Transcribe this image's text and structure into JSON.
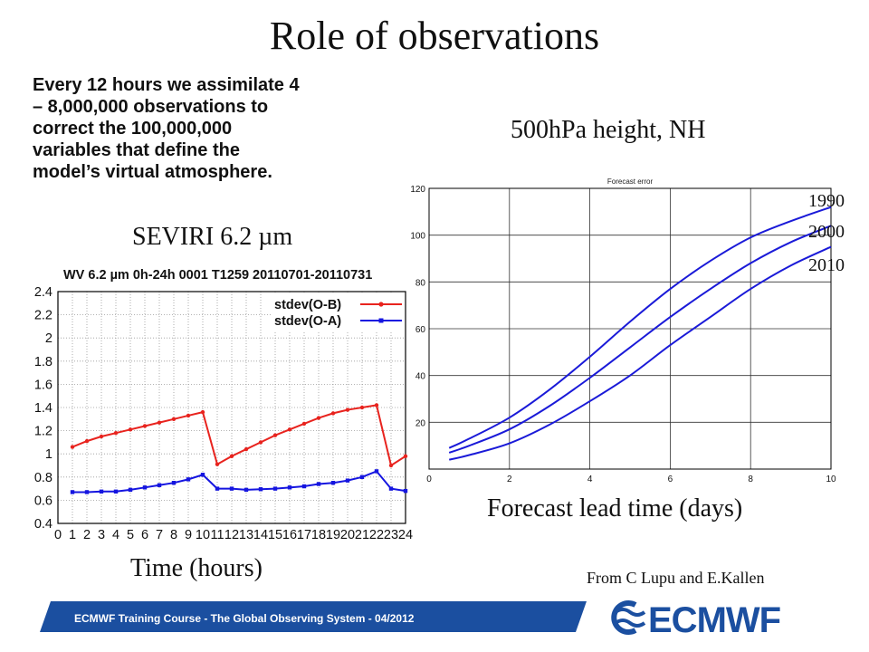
{
  "slide": {
    "title": "Role of observations",
    "intro": "Every 12 hours we assimilate 4\n– 8,000,000 observations to\ncorrect the 100,000,000\nvariables that define the\nmodel’s virtual atmosphere.",
    "seviri_label": "SEVIRI 6.2 µm",
    "time_label": "Time (hours)",
    "nh_label": "500hPa height, NH",
    "lead_label": "Forecast lead time (days)",
    "credit": "From C Lupu and E.Kallen",
    "footer": "ECMWF Training Course - The Global Observing System - 04/2012",
    "logo_text": "ECMWF",
    "colors": {
      "footer_blue": "#1b4fa0",
      "obs_red": "#e8231e",
      "obs_blue": "#1515e0",
      "forecast_blue": "#1a1ad8"
    }
  },
  "chart_data": [
    {
      "type": "line",
      "title": "WV 6.2 µm   0h-24h 0001 T1259 20110701-20110731",
      "xlabel": "Time (hours)",
      "ylabel": "",
      "xlim": [
        0,
        24
      ],
      "ylim": [
        0.4,
        2.4
      ],
      "x_ticks": [
        0,
        1,
        2,
        3,
        4,
        5,
        6,
        7,
        8,
        9,
        10,
        11,
        12,
        13,
        14,
        15,
        16,
        17,
        18,
        19,
        20,
        21,
        22,
        23,
        24
      ],
      "y_ticks": [
        "0.4",
        "0.6",
        "0.8",
        "1",
        "1.2",
        "1.4",
        "1.6",
        "1.8",
        "2",
        "2.2",
        "2.4"
      ],
      "grid": true,
      "legend": "top-right",
      "series": [
        {
          "name": "stdev(O-B)",
          "color": "#e8231e",
          "x": [
            1,
            2,
            3,
            4,
            5,
            6,
            7,
            8,
            9,
            10,
            11,
            12,
            13,
            14,
            15,
            16,
            17,
            18,
            19,
            20,
            21,
            22,
            23,
            24
          ],
          "values": [
            1.06,
            1.11,
            1.15,
            1.18,
            1.21,
            1.24,
            1.27,
            1.3,
            1.33,
            1.36,
            0.91,
            0.98,
            1.04,
            1.1,
            1.16,
            1.21,
            1.26,
            1.31,
            1.35,
            1.38,
            1.4,
            1.42,
            0.9,
            0.98
          ]
        },
        {
          "name": "stdev(O-A)",
          "color": "#1515e0",
          "x": [
            1,
            2,
            3,
            4,
            5,
            6,
            7,
            8,
            9,
            10,
            11,
            12,
            13,
            14,
            15,
            16,
            17,
            18,
            19,
            20,
            21,
            22,
            23,
            24
          ],
          "values": [
            0.67,
            0.67,
            0.675,
            0.675,
            0.69,
            0.71,
            0.73,
            0.75,
            0.78,
            0.82,
            0.7,
            0.7,
            0.69,
            0.695,
            0.7,
            0.71,
            0.72,
            0.74,
            0.75,
            0.77,
            0.8,
            0.85,
            0.7,
            0.68
          ]
        }
      ]
    },
    {
      "type": "line",
      "title": "Forecast error",
      "xlabel": "Forecast lead time (days)",
      "ylabel": "",
      "xlim": [
        0,
        10
      ],
      "ylim": [
        0,
        120
      ],
      "x_ticks": [
        0,
        2,
        4,
        6,
        8,
        10
      ],
      "y_ticks": [
        20,
        40,
        60,
        80,
        100,
        120
      ],
      "grid": true,
      "legend": "right",
      "series": [
        {
          "name": "1990",
          "color": "#1a1ad8",
          "x": [
            0.5,
            1,
            2,
            3,
            4,
            5,
            6,
            7,
            8,
            9,
            10
          ],
          "values": [
            9,
            13,
            22,
            34,
            48,
            63,
            77,
            89,
            99,
            106,
            112
          ]
        },
        {
          "name": "2000",
          "color": "#1a1ad8",
          "x": [
            0.5,
            1,
            2,
            3,
            4,
            5,
            6,
            7,
            8,
            9,
            10
          ],
          "values": [
            7,
            10,
            17,
            27,
            39,
            52,
            65,
            77,
            88,
            97,
            104
          ]
        },
        {
          "name": "2010",
          "color": "#1a1ad8",
          "x": [
            0.5,
            1,
            2,
            3,
            4,
            5,
            6,
            7,
            8,
            9,
            10
          ],
          "values": [
            4,
            6,
            11,
            19,
            29,
            40,
            53,
            65,
            77,
            87,
            95
          ]
        }
      ]
    }
  ]
}
